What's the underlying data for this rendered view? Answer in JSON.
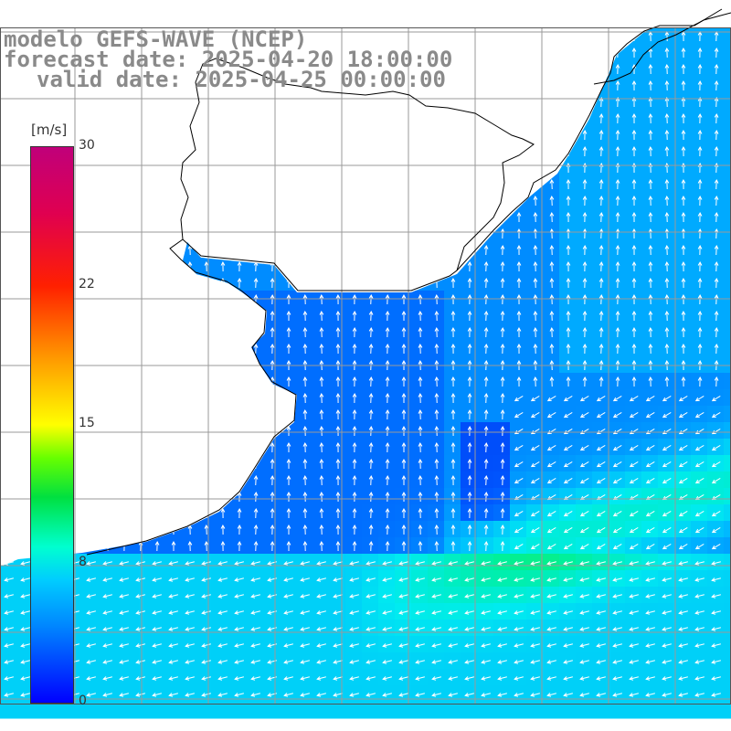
{
  "title": {
    "model": "modelo GEFS-WAVE (NCEP)",
    "forecast": "forecast date: 2025-04-20 18:00:00",
    "valid": "valid date: 2025-04-25 00:00:00"
  },
  "colorbar": {
    "unit": "[m/s]",
    "ticks": [
      "30",
      "22",
      "15",
      "8",
      "0"
    ],
    "min": 0,
    "max": 30,
    "colors": [
      "#0000ff",
      "#0088ff",
      "#00ccff",
      "#00ffd0",
      "#00e040",
      "#66ff00",
      "#ffff00",
      "#ff9900",
      "#ff2000",
      "#c0007a"
    ]
  },
  "map": {
    "background": "#ffffff",
    "grid_color": "#999999",
    "coast_color": "#000000",
    "arrow_color": "#ffffff",
    "field": "wind speed and direction (arrows)"
  }
}
